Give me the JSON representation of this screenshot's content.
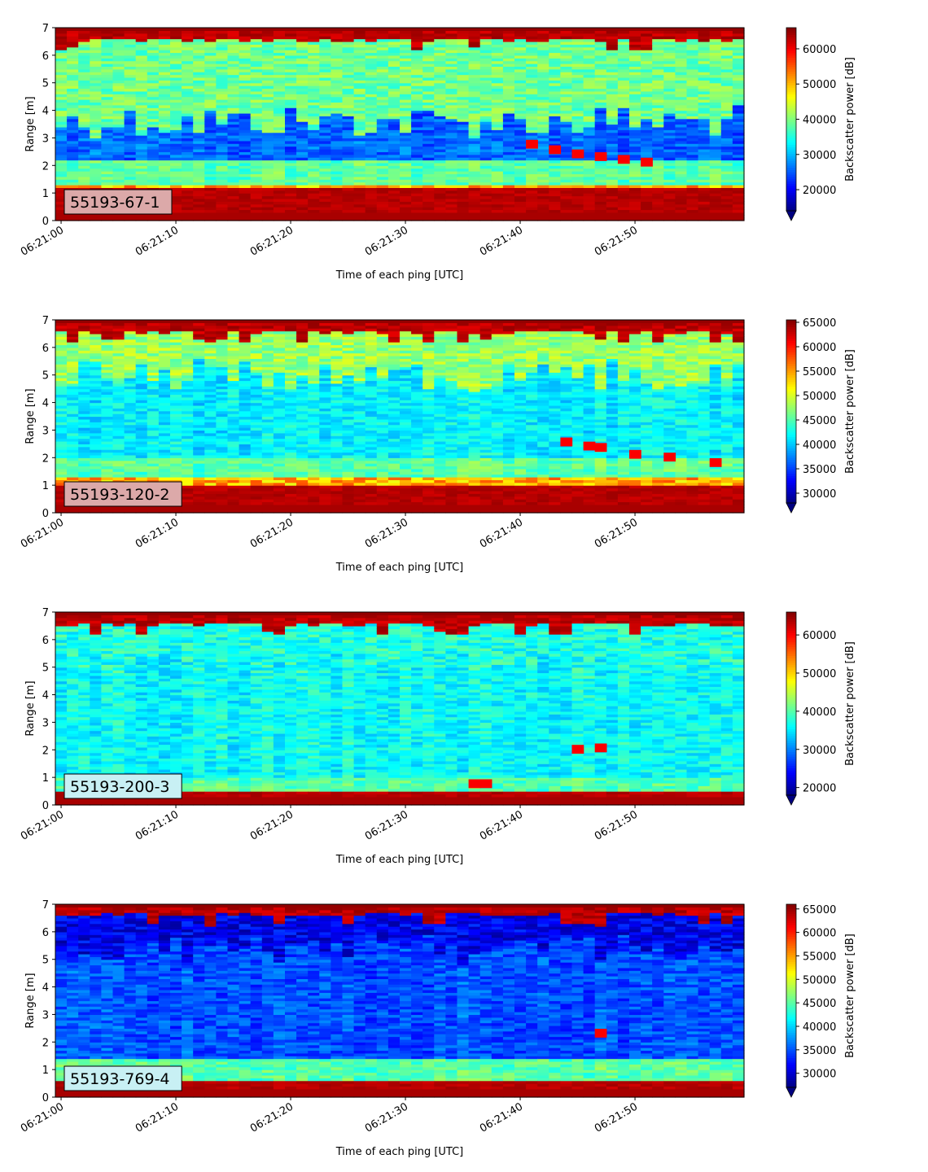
{
  "figure": {
    "background": "#ffffff"
  },
  "colormap": "jet",
  "chart_data": [
    {
      "type": "heatmap",
      "label_box": {
        "text": "55193-67-1",
        "color": "#dca9a9"
      },
      "xlabel": "Time of each ping [UTC]",
      "ylabel": "Range [m]",
      "xlim_seconds": [
        -0.5,
        59.5
      ],
      "xticks": [
        "06:21:00",
        "06:21:10",
        "06:21:20",
        "06:21:30",
        "06:21:40",
        "06:21:50"
      ],
      "xtick_seconds": [
        0,
        10,
        20,
        30,
        40,
        50
      ],
      "ylim": [
        0,
        7
      ],
      "yticks": [
        0,
        1,
        2,
        3,
        4,
        5,
        6,
        7
      ],
      "colorbar": {
        "label": "Backscatter power [dB]",
        "min": 14000,
        "max": 66000,
        "ticks": [
          20000,
          30000,
          40000,
          50000,
          60000
        ],
        "extend": "min"
      },
      "features": {
        "near_field_top": 1.2,
        "bottom_band": [
          1.3,
          2.2
        ],
        "floor_level": 0.3,
        "surface_low": 6.5,
        "mid_level": 0.14,
        "upper_level": 0.46,
        "upper_start": 4.2,
        "target_track": [
          [
            41,
            2.75
          ],
          [
            43,
            2.55
          ],
          [
            45,
            2.4
          ],
          [
            47,
            2.3
          ],
          [
            49,
            2.2
          ],
          [
            51,
            2.1
          ]
        ]
      }
    },
    {
      "type": "heatmap",
      "label_box": {
        "text": "55193-120-2",
        "color": "#dca9a9"
      },
      "xlabel": "Time of each ping [UTC]",
      "ylabel": "Range [m]",
      "xlim_seconds": [
        -0.5,
        59.5
      ],
      "xticks": [
        "06:21:00",
        "06:21:10",
        "06:21:20",
        "06:21:30",
        "06:21:40",
        "06:21:50"
      ],
      "xtick_seconds": [
        0,
        10,
        20,
        30,
        40,
        50
      ],
      "ylim": [
        0,
        7
      ],
      "yticks": [
        0,
        1,
        2,
        3,
        4,
        5,
        6,
        7
      ],
      "colorbar": {
        "label": "Backscatter power [dB]",
        "min": 28000,
        "max": 65500,
        "ticks": [
          30000,
          35000,
          40000,
          45000,
          50000,
          55000,
          60000,
          65000
        ],
        "extend": "min"
      },
      "features": {
        "near_field_top": 1.0,
        "bottom_band": [
          1.3,
          2.0
        ],
        "floor_level": 0.3,
        "surface_low": 6.5,
        "mid_level": 0.28,
        "upper_level": 0.5,
        "upper_start": 5.6,
        "target_track": [
          [
            44,
            2.55
          ],
          [
            46,
            2.4
          ],
          [
            47,
            2.35
          ],
          [
            50,
            2.1
          ],
          [
            53,
            2.0
          ],
          [
            57,
            1.8
          ]
        ]
      }
    },
    {
      "type": "heatmap",
      "label_box": {
        "text": "55193-200-3",
        "color": "#c8f0f4"
      },
      "xlabel": "Time of each ping [UTC]",
      "ylabel": "Range [m]",
      "xlim_seconds": [
        -0.5,
        59.5
      ],
      "xticks": [
        "06:21:00",
        "06:21:10",
        "06:21:20",
        "06:21:30",
        "06:21:40",
        "06:21:50"
      ],
      "xtick_seconds": [
        0,
        10,
        20,
        30,
        40,
        50
      ],
      "ylim": [
        0,
        7
      ],
      "yticks": [
        0,
        1,
        2,
        3,
        4,
        5,
        6,
        7
      ],
      "colorbar": {
        "label": "Backscatter power [dB]",
        "min": 18000,
        "max": 66000,
        "ticks": [
          20000,
          30000,
          40000,
          50000,
          60000
        ],
        "extend": "min"
      },
      "features": {
        "near_field_top": 0.45,
        "bottom_band": [
          0.45,
          1.0
        ],
        "floor_level": 0.35,
        "surface_low": 6.5,
        "mid_level": 0.3,
        "upper_level": 0.38,
        "upper_start": 5.5,
        "target_track": [
          [
            45,
            2.0
          ],
          [
            47,
            2.05
          ],
          [
            36,
            0.75
          ],
          [
            37,
            0.75
          ]
        ]
      }
    },
    {
      "type": "heatmap",
      "label_box": {
        "text": "55193-769-4",
        "color": "#c8f0f4"
      },
      "xlabel": "Time of each ping [UTC]",
      "ylabel": "Range [m]",
      "xlim_seconds": [
        -0.5,
        59.5
      ],
      "xticks": [
        "06:21:00",
        "06:21:10",
        "06:21:20",
        "06:21:30",
        "06:21:40",
        "06:21:50"
      ],
      "xtick_seconds": [
        0,
        10,
        20,
        30,
        40,
        50
      ],
      "ylim": [
        0,
        7
      ],
      "yticks": [
        0,
        1,
        2,
        3,
        4,
        5,
        6,
        7
      ],
      "colorbar": {
        "label": "Backscatter power [dB]",
        "min": 27000,
        "max": 66000,
        "ticks": [
          30000,
          35000,
          40000,
          45000,
          50000,
          55000,
          60000,
          65000
        ],
        "extend": "min"
      },
      "features": {
        "near_field_top": 0.65,
        "bottom_band": [
          0.65,
          1.4
        ],
        "floor_level": 0.3,
        "surface_low": 6.55,
        "mid_level": 0.12,
        "upper_level": 0.08,
        "upper_start": 6.0,
        "target_track": [
          [
            47,
            2.3
          ]
        ]
      }
    }
  ]
}
